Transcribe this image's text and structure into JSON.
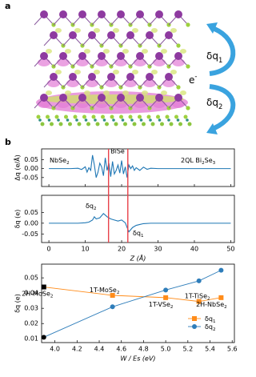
{
  "panel_a": {
    "label": "a",
    "annotations": [
      "δq1",
      "e-",
      "δq2"
    ]
  },
  "panel_b": {
    "label": "b"
  },
  "chart_data": [
    {
      "type": "line",
      "ylabel": "Δq (e/Å)",
      "annotations": [
        "NbSe2",
        "BiSe",
        "2QL Bi2Se3"
      ],
      "x": [
        0,
        2,
        4,
        6,
        8,
        9,
        10,
        10.5,
        11,
        11.5,
        12,
        12.5,
        13,
        13.5,
        14,
        14.5,
        15,
        15.5,
        16,
        16.5,
        17,
        17.5,
        18,
        18.5,
        19,
        19.5,
        20,
        20.5,
        21,
        21.5,
        22,
        22.5,
        23,
        23.5,
        24,
        25,
        26,
        27,
        28,
        30,
        35,
        40,
        45,
        50
      ],
      "values": [
        0,
        0,
        0,
        0,
        0.002,
        -0.005,
        0.01,
        -0.02,
        0.005,
        -0.01,
        0.075,
        0.02,
        -0.05,
        -0.02,
        0.03,
        0.01,
        -0.04,
        0.06,
        -0.01,
        0.03,
        -0.045,
        0.04,
        -0.03,
        -0.01,
        0.02,
        -0.025,
        0.045,
        -0.03,
        0.01,
        -0.05,
        0.02,
        0,
        0.015,
        -0.01,
        0.005,
        -0.01,
        0.008,
        -0.004,
        0.002,
        0,
        0,
        0,
        0,
        0
      ],
      "color": "#1f77b4",
      "xlim": [
        -2,
        51
      ],
      "ylim": [
        -0.1,
        0.11
      ],
      "xticks": [
        0,
        10,
        20,
        30,
        40,
        50
      ],
      "yticks": [
        {
          "value": -0.05,
          "label": "-0.05"
        },
        {
          "value": 0,
          "label": "0.00"
        },
        {
          "value": 0.05,
          "label": "0.05"
        }
      ]
    },
    {
      "type": "line",
      "ylabel": "δq (e)",
      "xlabel": "Z (Å)",
      "annotations": [
        "δq2",
        "δq1"
      ],
      "x": [
        0,
        8,
        10,
        11,
        12,
        12.5,
        13,
        14,
        15,
        15.5,
        16,
        17,
        18,
        19,
        20,
        21,
        21.5,
        22,
        22.5,
        23,
        24,
        25,
        26,
        28,
        30,
        50
      ],
      "values": [
        0,
        0,
        0.002,
        0.005,
        0.015,
        0.03,
        0.02,
        0.025,
        0.045,
        0.038,
        0.03,
        0.02,
        0.015,
        0.01,
        0.015,
        0.002,
        -0.02,
        -0.04,
        -0.03,
        -0.02,
        -0.01,
        -0.006,
        -0.002,
        0,
        0,
        0
      ],
      "color": "#1f77b4",
      "vlines": [
        16.4,
        21.7
      ],
      "vline_color": "#e8414a",
      "xlim": [
        -2,
        51
      ],
      "ylim": [
        -0.09,
        0.13
      ],
      "xticks": [
        0,
        10,
        20,
        30,
        40,
        50
      ],
      "yticks": [
        {
          "value": -0.05,
          "label": "-0.05"
        },
        {
          "value": 0,
          "label": "0.00"
        },
        {
          "value": 0.05,
          "label": "0.05"
        }
      ]
    },
    {
      "type": "line-markers",
      "xlabel": "W / Es (eV)",
      "ylabel": "δq (e)",
      "x": [
        3.9,
        4.52,
        5.0,
        5.3,
        5.5
      ],
      "point_labels": [
        "2H-MoSe2",
        "1T-MoSe2",
        "1T-VSe2",
        "1T-TiSe2",
        "2H-NbSe2"
      ],
      "series": [
        {
          "name": "δq1",
          "color": "#ff8c1a",
          "marker": "square",
          "values": [
            0.044,
            0.0385,
            0.037,
            0.0345,
            0.037
          ],
          "marker_colors": [
            "#000000",
            "#ff8c1a",
            "#ff8c1a",
            "#ff8c1a",
            "#ff8c1a"
          ]
        },
        {
          "name": "δq2",
          "color": "#2e7dba",
          "marker": "circle",
          "values": [
            0.011,
            0.031,
            0.042,
            0.048,
            0.055
          ],
          "marker_colors": [
            "#000000",
            "#2e7dba",
            "#2e7dba",
            "#2e7dba",
            "#2e7dba"
          ]
        }
      ],
      "legend": "lower right",
      "xlim": [
        3.88,
        5.62
      ],
      "ylim": [
        0.0075,
        0.059
      ],
      "xticks": [
        {
          "value": 4,
          "label": "4.0"
        },
        4.2,
        4.4,
        4.6,
        4.8,
        {
          "value": 5,
          "label": "5.0"
        },
        5.2,
        5.4,
        5.6
      ],
      "yticks": [
        0.01,
        0.02,
        0.03,
        0.04,
        0.05
      ]
    }
  ]
}
